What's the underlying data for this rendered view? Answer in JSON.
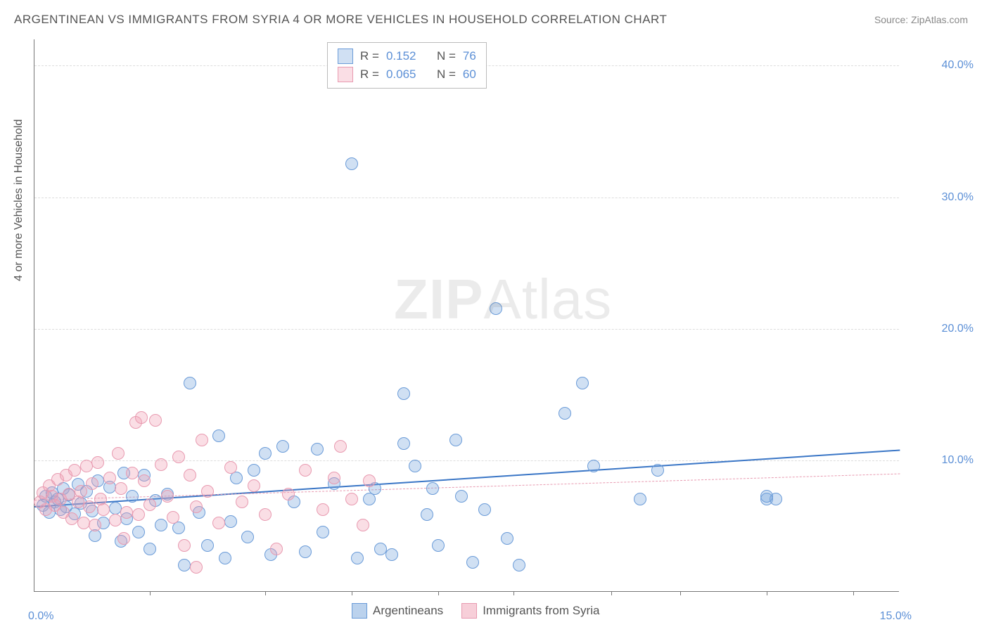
{
  "title": "ARGENTINEAN VS IMMIGRANTS FROM SYRIA 4 OR MORE VEHICLES IN HOUSEHOLD CORRELATION CHART",
  "source": "Source: ZipAtlas.com",
  "watermark": {
    "part1": "ZIP",
    "part2": "Atlas"
  },
  "ylabel": "4 or more Vehicles in Household",
  "chart": {
    "type": "scatter",
    "background_color": "#ffffff",
    "grid_color": "#dddddd",
    "axis_color": "#777777",
    "xlim": [
      0,
      15
    ],
    "ylim": [
      0,
      42
    ],
    "y_ticks": [
      10,
      20,
      30,
      40
    ],
    "y_tick_labels": [
      "10.0%",
      "20.0%",
      "30.0%",
      "40.0%"
    ],
    "x_left_label": "0.0%",
    "x_right_label": "15.0%",
    "x_minor_ticks": [
      2,
      4,
      5.5,
      7,
      8.3,
      10,
      11.2,
      12.7,
      14.2
    ],
    "marker_radius": 9,
    "marker_stroke_width": 1.5,
    "series": [
      {
        "name": "Argentineans",
        "fill": "rgba(120,165,220,0.35)",
        "stroke": "#6a9bd8",
        "r_value": "0.152",
        "n_value": "76",
        "trend": {
          "x1": 0,
          "y1": 6.5,
          "x2": 15,
          "y2": 10.8,
          "color": "#3a76c6",
          "width": 2.5,
          "dash": "solid"
        },
        "points": [
          [
            0.15,
            6.5
          ],
          [
            0.2,
            7.2
          ],
          [
            0.25,
            6.0
          ],
          [
            0.3,
            7.5
          ],
          [
            0.35,
            6.8
          ],
          [
            0.4,
            7.0
          ],
          [
            0.45,
            6.2
          ],
          [
            0.5,
            7.8
          ],
          [
            0.55,
            6.4
          ],
          [
            0.6,
            7.3
          ],
          [
            0.7,
            5.9
          ],
          [
            0.75,
            8.1
          ],
          [
            0.8,
            6.7
          ],
          [
            0.9,
            7.6
          ],
          [
            1.0,
            6.1
          ],
          [
            1.05,
            4.2
          ],
          [
            1.1,
            8.4
          ],
          [
            1.2,
            5.2
          ],
          [
            1.3,
            7.9
          ],
          [
            1.4,
            6.3
          ],
          [
            1.5,
            3.8
          ],
          [
            1.55,
            9.0
          ],
          [
            1.6,
            5.5
          ],
          [
            1.7,
            7.2
          ],
          [
            1.8,
            4.5
          ],
          [
            1.9,
            8.8
          ],
          [
            2.0,
            3.2
          ],
          [
            2.1,
            6.9
          ],
          [
            2.2,
            5.0
          ],
          [
            2.3,
            7.4
          ],
          [
            2.5,
            4.8
          ],
          [
            2.7,
            15.8
          ],
          [
            2.85,
            6.0
          ],
          [
            3.0,
            3.5
          ],
          [
            3.2,
            11.8
          ],
          [
            3.4,
            5.3
          ],
          [
            3.5,
            8.6
          ],
          [
            3.7,
            4.1
          ],
          [
            3.8,
            9.2
          ],
          [
            4.0,
            10.5
          ],
          [
            4.1,
            2.8
          ],
          [
            4.3,
            11.0
          ],
          [
            4.5,
            6.8
          ],
          [
            4.7,
            3.0
          ],
          [
            4.9,
            10.8
          ],
          [
            5.0,
            4.5
          ],
          [
            5.2,
            8.2
          ],
          [
            5.5,
            32.5
          ],
          [
            5.6,
            2.5
          ],
          [
            5.8,
            7.0
          ],
          [
            6.0,
            3.2
          ],
          [
            6.2,
            2.8
          ],
          [
            6.4,
            15.0
          ],
          [
            6.4,
            11.2
          ],
          [
            6.6,
            9.5
          ],
          [
            6.8,
            5.8
          ],
          [
            7.0,
            3.5
          ],
          [
            7.3,
            11.5
          ],
          [
            7.4,
            7.2
          ],
          [
            7.6,
            2.2
          ],
          [
            7.8,
            6.2
          ],
          [
            8.0,
            21.5
          ],
          [
            8.2,
            4.0
          ],
          [
            8.4,
            2.0
          ],
          [
            9.2,
            13.5
          ],
          [
            9.5,
            15.8
          ],
          [
            9.7,
            9.5
          ],
          [
            10.5,
            7.0
          ],
          [
            10.8,
            9.2
          ],
          [
            12.7,
            7.0
          ],
          [
            12.85,
            7.0
          ],
          [
            12.7,
            7.2
          ],
          [
            6.9,
            7.8
          ],
          [
            5.9,
            7.8
          ],
          [
            3.3,
            2.5
          ],
          [
            2.6,
            2.0
          ]
        ]
      },
      {
        "name": "Immigrants from Syria",
        "fill": "rgba(240,160,180,0.35)",
        "stroke": "#e89ab0",
        "r_value": "0.065",
        "n_value": "60",
        "trend": {
          "x1": 0,
          "y1": 7.0,
          "x2": 15,
          "y2": 9.0,
          "color": "#e89ab0",
          "width": 1,
          "dash": "dashed"
        },
        "points": [
          [
            0.1,
            6.8
          ],
          [
            0.15,
            7.5
          ],
          [
            0.2,
            6.2
          ],
          [
            0.25,
            8.0
          ],
          [
            0.3,
            7.2
          ],
          [
            0.35,
            6.5
          ],
          [
            0.4,
            8.5
          ],
          [
            0.45,
            7.0
          ],
          [
            0.5,
            6.0
          ],
          [
            0.55,
            8.8
          ],
          [
            0.6,
            7.4
          ],
          [
            0.65,
            5.5
          ],
          [
            0.7,
            9.2
          ],
          [
            0.75,
            6.8
          ],
          [
            0.8,
            7.6
          ],
          [
            0.85,
            5.2
          ],
          [
            0.9,
            9.5
          ],
          [
            0.95,
            6.4
          ],
          [
            1.0,
            8.2
          ],
          [
            1.05,
            5.0
          ],
          [
            1.1,
            9.8
          ],
          [
            1.15,
            7.0
          ],
          [
            1.2,
            6.2
          ],
          [
            1.3,
            8.6
          ],
          [
            1.4,
            5.4
          ],
          [
            1.45,
            10.5
          ],
          [
            1.5,
            7.8
          ],
          [
            1.6,
            6.0
          ],
          [
            1.7,
            9.0
          ],
          [
            1.75,
            12.8
          ],
          [
            1.8,
            5.8
          ],
          [
            1.85,
            13.2
          ],
          [
            1.9,
            8.4
          ],
          [
            2.0,
            6.6
          ],
          [
            2.1,
            13.0
          ],
          [
            2.2,
            9.6
          ],
          [
            2.3,
            7.2
          ],
          [
            2.4,
            5.6
          ],
          [
            2.5,
            10.2
          ],
          [
            2.6,
            3.5
          ],
          [
            2.7,
            8.8
          ],
          [
            2.8,
            6.4
          ],
          [
            2.9,
            11.5
          ],
          [
            3.0,
            7.6
          ],
          [
            3.2,
            5.2
          ],
          [
            3.4,
            9.4
          ],
          [
            3.6,
            6.8
          ],
          [
            3.8,
            8.0
          ],
          [
            4.0,
            5.8
          ],
          [
            4.2,
            3.2
          ],
          [
            4.4,
            7.4
          ],
          [
            4.7,
            9.2
          ],
          [
            5.0,
            6.2
          ],
          [
            5.2,
            8.6
          ],
          [
            5.3,
            11.0
          ],
          [
            5.5,
            7.0
          ],
          [
            5.7,
            5.0
          ],
          [
            5.8,
            8.4
          ],
          [
            2.8,
            1.8
          ],
          [
            1.55,
            4.0
          ]
        ]
      }
    ]
  },
  "legend_bottom": {
    "items": [
      {
        "label": "Argentineans",
        "fill": "rgba(120,165,220,0.5)",
        "stroke": "#6a9bd8"
      },
      {
        "label": "Immigrants from Syria",
        "fill": "rgba(240,160,180,0.5)",
        "stroke": "#e89ab0"
      }
    ]
  },
  "stats_legend_labels": {
    "r": "R  =",
    "n": "N  ="
  }
}
